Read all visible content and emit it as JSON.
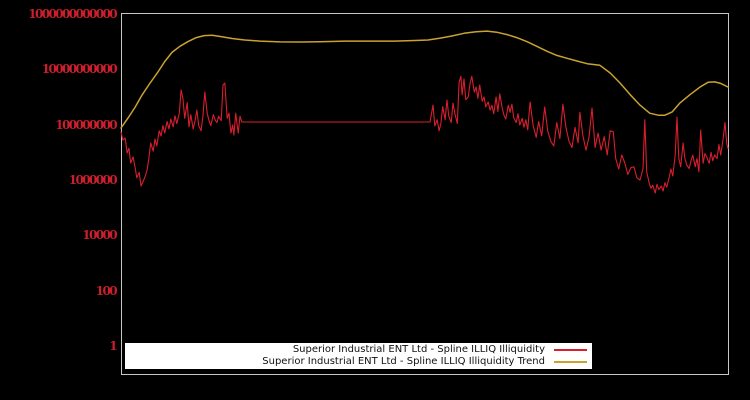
{
  "figure": {
    "background": "#000000",
    "frame_color": "#c8c8c8",
    "title": ""
  },
  "legend": {
    "background": "#ffffff",
    "text_color": "#111111"
  },
  "chart_data": {
    "type": "line",
    "title": "",
    "xlabel": "",
    "ylabel": "",
    "grid": false,
    "legend_position": "bottom-center",
    "x_axis": {
      "tick_labels_visible": false,
      "domain": [
        0,
        1
      ]
    },
    "y_axis": {
      "scale": "log",
      "label_color": "#cc1f2d",
      "tick_values": [
        1,
        100,
        10000,
        1000000,
        100000000,
        10000000000,
        1000000000000
      ],
      "top_value": 1000000000000,
      "bottom_value": 0.1
    },
    "series": [
      {
        "name": "Superior Industrial ENT Ltd - Spline ILLIQ Illiquidity",
        "color": "#d91e2e",
        "stroke_width": 1.1,
        "points": [
          [
            0.0,
            55000000.0
          ],
          [
            0.003,
            28000000.0
          ],
          [
            0.007,
            33000000.0
          ],
          [
            0.01,
            9500000.0
          ],
          [
            0.013,
            14000000.0
          ],
          [
            0.016,
            4100000.0
          ],
          [
            0.02,
            6800000.0
          ],
          [
            0.023,
            3000000.0
          ],
          [
            0.026,
            1200000.0
          ],
          [
            0.03,
            1900000.0
          ],
          [
            0.033,
            600000.0
          ],
          [
            0.036,
            850000.0
          ],
          [
            0.04,
            1400000.0
          ],
          [
            0.043,
            2300000.0
          ],
          [
            0.046,
            6200000.0
          ],
          [
            0.049,
            22000000.0
          ],
          [
            0.053,
            11000000.0
          ],
          [
            0.056,
            30000000.0
          ],
          [
            0.059,
            17000000.0
          ],
          [
            0.063,
            60000000.0
          ],
          [
            0.066,
            39000000.0
          ],
          [
            0.069,
            92000000.0
          ],
          [
            0.072,
            50000000.0
          ],
          [
            0.076,
            130000000.0
          ],
          [
            0.079,
            70000000.0
          ],
          [
            0.082,
            160000000.0
          ],
          [
            0.086,
            84000000.0
          ],
          [
            0.089,
            210000000.0
          ],
          [
            0.092,
            110000000.0
          ],
          [
            0.096,
            260000000.0
          ],
          [
            0.099,
            1800000000.0
          ],
          [
            0.102,
            900000000.0
          ],
          [
            0.105,
            170000000.0
          ],
          [
            0.109,
            630000000.0
          ],
          [
            0.112,
            84000000.0
          ],
          [
            0.115,
            230000000.0
          ],
          [
            0.119,
            70000000.0
          ],
          [
            0.122,
            140000000.0
          ],
          [
            0.125,
            340000000.0
          ],
          [
            0.128,
            92000000.0
          ],
          [
            0.132,
            60000000.0
          ],
          [
            0.135,
            200000000.0
          ],
          [
            0.138,
            1500000000.0
          ],
          [
            0.142,
            260000000.0
          ],
          [
            0.145,
            140000000.0
          ],
          [
            0.148,
            92000000.0
          ],
          [
            0.152,
            230000000.0
          ],
          [
            0.155,
            150000000.0
          ],
          [
            0.158,
            120000000.0
          ],
          [
            0.161,
            200000000.0
          ],
          [
            0.165,
            140000000.0
          ],
          [
            0.168,
            2700000000.0
          ],
          [
            0.171,
            3200000000.0
          ],
          [
            0.175,
            170000000.0
          ],
          [
            0.178,
            260000000.0
          ],
          [
            0.181,
            50000000.0
          ],
          [
            0.184,
            98000000.0
          ],
          [
            0.186,
            42000000.0
          ],
          [
            0.189,
            260000000.0
          ],
          [
            0.193,
            50000000.0
          ],
          [
            0.196,
            200000000.0
          ],
          [
            0.199,
            125000000.0
          ],
          [
            0.509,
            125000000.0
          ],
          [
            0.514,
            510000000.0
          ],
          [
            0.517,
            90000000.0
          ],
          [
            0.521,
            150000000.0
          ],
          [
            0.524,
            60000000.0
          ],
          [
            0.527,
            110000000.0
          ],
          [
            0.53,
            450000000.0
          ],
          [
            0.534,
            150000000.0
          ],
          [
            0.537,
            780000000.0
          ],
          [
            0.54,
            200000000.0
          ],
          [
            0.544,
            120000000.0
          ],
          [
            0.547,
            600000000.0
          ],
          [
            0.55,
            250000000.0
          ],
          [
            0.554,
            110000000.0
          ],
          [
            0.557,
            3400000000.0
          ],
          [
            0.56,
            5600000000.0
          ],
          [
            0.562,
            1200000000.0
          ],
          [
            0.565,
            4500000000.0
          ],
          [
            0.568,
            800000000.0
          ],
          [
            0.572,
            1000000000.0
          ],
          [
            0.575,
            3000000000.0
          ],
          [
            0.578,
            5600000000.0
          ],
          [
            0.582,
            1500000000.0
          ],
          [
            0.585,
            2300000000.0
          ],
          [
            0.588,
            900000000.0
          ],
          [
            0.591,
            2700000000.0
          ],
          [
            0.595,
            700000000.0
          ],
          [
            0.598,
            1000000000.0
          ],
          [
            0.601,
            440000000.0
          ],
          [
            0.605,
            660000000.0
          ],
          [
            0.608,
            340000000.0
          ],
          [
            0.611,
            500000000.0
          ],
          [
            0.614,
            250000000.0
          ],
          [
            0.618,
            1000000000.0
          ],
          [
            0.621,
            300000000.0
          ],
          [
            0.624,
            1300000000.0
          ],
          [
            0.628,
            400000000.0
          ],
          [
            0.631,
            220000000.0
          ],
          [
            0.634,
            160000000.0
          ],
          [
            0.638,
            500000000.0
          ],
          [
            0.641,
            280000000.0
          ],
          [
            0.644,
            550000000.0
          ],
          [
            0.647,
            180000000.0
          ],
          [
            0.651,
            120000000.0
          ],
          [
            0.654,
            250000000.0
          ],
          [
            0.657,
            98000000.0
          ],
          [
            0.661,
            170000000.0
          ],
          [
            0.664,
            80000000.0
          ],
          [
            0.667,
            150000000.0
          ],
          [
            0.67,
            65000000.0
          ],
          [
            0.674,
            660000000.0
          ],
          [
            0.679,
            90000000.0
          ],
          [
            0.684,
            35000000.0
          ],
          [
            0.688,
            130000000.0
          ],
          [
            0.693,
            40000000.0
          ],
          [
            0.698,
            440000000.0
          ],
          [
            0.703,
            60000000.0
          ],
          [
            0.708,
            25000000.0
          ],
          [
            0.713,
            17000000.0
          ],
          [
            0.718,
            120000000.0
          ],
          [
            0.723,
            32000000.0
          ],
          [
            0.728,
            550000000.0
          ],
          [
            0.733,
            80000000.0
          ],
          [
            0.738,
            25000000.0
          ],
          [
            0.743,
            15000000.0
          ],
          [
            0.748,
            80000000.0
          ],
          [
            0.753,
            22000000.0
          ],
          [
            0.756,
            280000000.0
          ],
          [
            0.761,
            40000000.0
          ],
          [
            0.766,
            12000000.0
          ],
          [
            0.771,
            35000000.0
          ],
          [
            0.776,
            400000000.0
          ],
          [
            0.781,
            15000000.0
          ],
          [
            0.786,
            50000000.0
          ],
          [
            0.791,
            12000000.0
          ],
          [
            0.796,
            37000000.0
          ],
          [
            0.801,
            8000000.0
          ],
          [
            0.806,
            60000000.0
          ],
          [
            0.811,
            55000000.0
          ],
          [
            0.815,
            6000000.0
          ],
          [
            0.82,
            2500000.0
          ],
          [
            0.825,
            8000000.0
          ],
          [
            0.83,
            4100000.0
          ],
          [
            0.835,
            1600000.0
          ],
          [
            0.84,
            2800000.0
          ],
          [
            0.845,
            3000000.0
          ],
          [
            0.85,
            1200000.0
          ],
          [
            0.855,
            1000000.0
          ],
          [
            0.86,
            2500000.0
          ],
          [
            0.863,
            150000000.0
          ],
          [
            0.866,
            2000000.0
          ],
          [
            0.87,
            800000.0
          ],
          [
            0.873,
            500000.0
          ],
          [
            0.876,
            650000.0
          ],
          [
            0.88,
            340000.0
          ],
          [
            0.883,
            700000.0
          ],
          [
            0.886,
            450000.0
          ],
          [
            0.89,
            600000.0
          ],
          [
            0.893,
            400000.0
          ],
          [
            0.896,
            800000.0
          ],
          [
            0.899,
            550000.0
          ],
          [
            0.903,
            1200000.0
          ],
          [
            0.906,
            2500000.0
          ],
          [
            0.909,
            1400000.0
          ],
          [
            0.913,
            8000000.0
          ],
          [
            0.916,
            190000000.0
          ],
          [
            0.919,
            6000000.0
          ],
          [
            0.922,
            3000000.0
          ],
          [
            0.926,
            22000000.0
          ],
          [
            0.929,
            6000000.0
          ],
          [
            0.932,
            3500000.0
          ],
          [
            0.936,
            2600000.0
          ],
          [
            0.939,
            5000000.0
          ],
          [
            0.942,
            8000000.0
          ],
          [
            0.946,
            3000000.0
          ],
          [
            0.949,
            6000000.0
          ],
          [
            0.952,
            2000000.0
          ],
          [
            0.955,
            64000000.0
          ],
          [
            0.959,
            4000000.0
          ],
          [
            0.962,
            9000000.0
          ],
          [
            0.965,
            6600000.0
          ],
          [
            0.969,
            4000000.0
          ],
          [
            0.972,
            10000000.0
          ],
          [
            0.975,
            5000000.0
          ],
          [
            0.978,
            8000000.0
          ],
          [
            0.982,
            6000000.0
          ],
          [
            0.985,
            19000000.0
          ],
          [
            0.988,
            8000000.0
          ],
          [
            0.992,
            30000000.0
          ],
          [
            0.995,
            120000000.0
          ],
          [
            0.998,
            20000000.0
          ],
          [
            1.0,
            14000000.0
          ]
        ]
      },
      {
        "name": "Superior Industrial ENT Ltd - Spline ILLIQ Illiquidity Trend",
        "color": "#c9a22f",
        "stroke_width": 1.5,
        "points": [
          [
            0.0,
            76000000.0
          ],
          [
            0.012,
            180000000.0
          ],
          [
            0.023,
            420000000.0
          ],
          [
            0.035,
            1200000000.0
          ],
          [
            0.048,
            3200000000.0
          ],
          [
            0.061,
            8100000000.0
          ],
          [
            0.072,
            19000000000.0
          ],
          [
            0.084,
            41000000000.0
          ],
          [
            0.097,
            68000000000.0
          ],
          [
            0.11,
            100000000000.0
          ],
          [
            0.124,
            140000000000.0
          ],
          [
            0.137,
            165000000000.0
          ],
          [
            0.15,
            170000000000.0
          ],
          [
            0.166,
            150000000000.0
          ],
          [
            0.183,
            130000000000.0
          ],
          [
            0.204,
            115000000000.0
          ],
          [
            0.229,
            105000000000.0
          ],
          [
            0.262,
            98000000000.0
          ],
          [
            0.295,
            97000000000.0
          ],
          [
            0.328,
            100000000000.0
          ],
          [
            0.369,
            105000000000.0
          ],
          [
            0.41,
            105000000000.0
          ],
          [
            0.451,
            105000000000.0
          ],
          [
            0.484,
            110000000000.0
          ],
          [
            0.506,
            115000000000.0
          ],
          [
            0.526,
            135000000000.0
          ],
          [
            0.545,
            160000000000.0
          ],
          [
            0.565,
            200000000000.0
          ],
          [
            0.585,
            230000000000.0
          ],
          [
            0.603,
            240000000000.0
          ],
          [
            0.619,
            220000000000.0
          ],
          [
            0.636,
            180000000000.0
          ],
          [
            0.652,
            140000000000.0
          ],
          [
            0.669,
            100000000000.0
          ],
          [
            0.685,
            68000000000.0
          ],
          [
            0.702,
            45000000000.0
          ],
          [
            0.718,
            32000000000.0
          ],
          [
            0.735,
            25000000000.0
          ],
          [
            0.751,
            20000000000.0
          ],
          [
            0.768,
            16000000000.0
          ],
          [
            0.789,
            14000000000.0
          ],
          [
            0.806,
            7400000000.0
          ],
          [
            0.822,
            3200000000.0
          ],
          [
            0.839,
            1200000000.0
          ],
          [
            0.855,
            510000000.0
          ],
          [
            0.871,
            260000000.0
          ],
          [
            0.885,
            220000000.0
          ],
          [
            0.896,
            220000000.0
          ],
          [
            0.908,
            290000000.0
          ],
          [
            0.921,
            610000000.0
          ],
          [
            0.937,
            1200000000.0
          ],
          [
            0.954,
            2300000000.0
          ],
          [
            0.967,
            3400000000.0
          ],
          [
            0.978,
            3500000000.0
          ],
          [
            0.988,
            3100000000.0
          ],
          [
            1.0,
            2300000000.0
          ]
        ]
      }
    ]
  }
}
